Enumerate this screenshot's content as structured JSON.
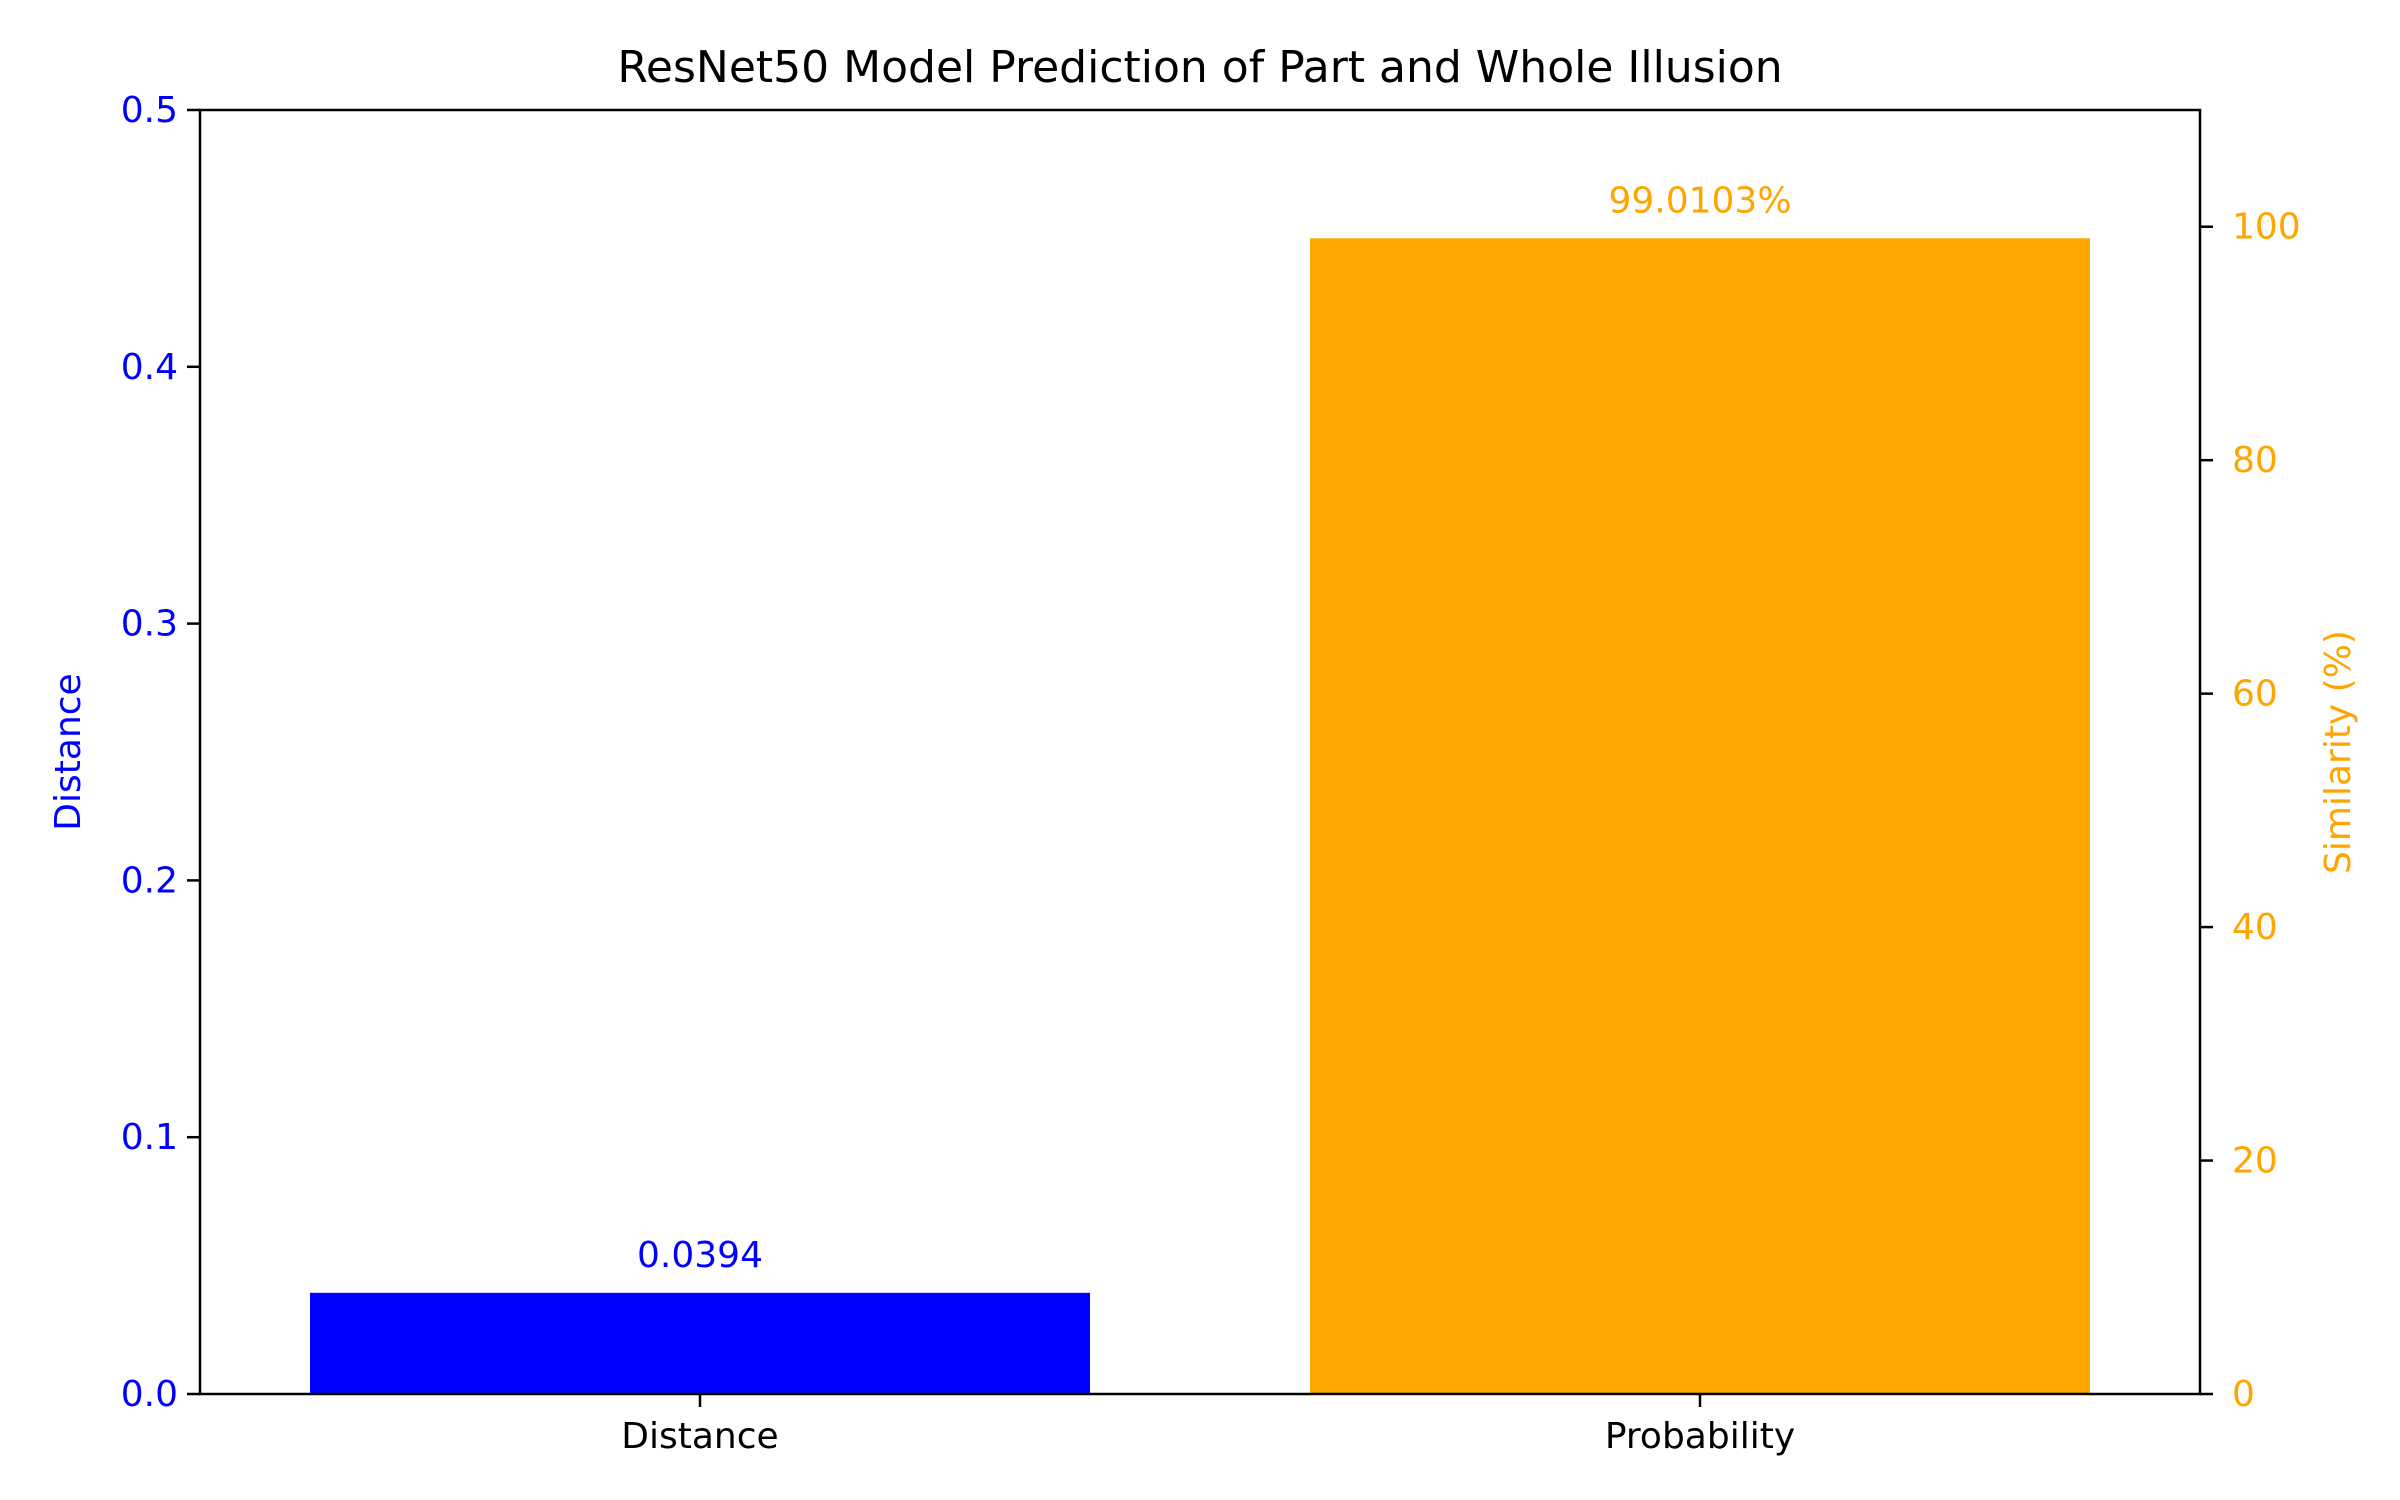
{
  "chart_data": {
    "type": "bar",
    "title": "ResNet50 Model Prediction of Part and Whole Illusion",
    "categories": [
      "Distance",
      "Probability"
    ],
    "left_axis": {
      "label": "Distance",
      "ylim": [
        0,
        0.5
      ],
      "ticks": [
        0.0,
        0.1,
        0.2,
        0.3,
        0.4,
        0.5
      ],
      "tick_labels": [
        "0.0",
        "0.1",
        "0.2",
        "0.3",
        "0.4",
        "0.5"
      ],
      "color": "#0000ff"
    },
    "right_axis": {
      "label": "Similarity (%)",
      "ylim": [
        0,
        110
      ],
      "ticks": [
        0,
        20,
        40,
        60,
        80,
        100
      ],
      "tick_labels": [
        "0",
        "20",
        "40",
        "60",
        "80",
        "100"
      ],
      "color": "#ffa500"
    },
    "series": [
      {
        "category": "Distance",
        "value": 0.0394,
        "axis": "left",
        "color": "#0000ff",
        "value_label": "0.0394"
      },
      {
        "category": "Probability",
        "value": 99.0103,
        "axis": "right",
        "color": "#ffa500",
        "value_label": "99.0103%"
      }
    ],
    "grid": false,
    "legend": "none"
  }
}
